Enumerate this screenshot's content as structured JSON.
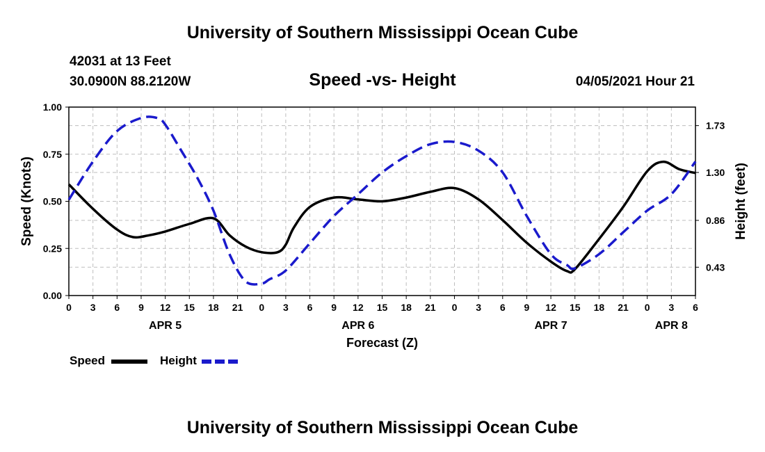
{
  "header": {
    "title_top": "University of Southern Mississippi Ocean Cube",
    "station_line": "42031 at 13 Feet",
    "coords_line": "30.0900N  88.2120W",
    "chart_subtitle": "Speed -vs- Height",
    "timestamp": "04/05/2021 Hour 21"
  },
  "footer": {
    "title_bottom": "University of Southern Mississippi Ocean Cube"
  },
  "legend": {
    "speed_label": "Speed",
    "height_label": "Height"
  },
  "colors": {
    "speed": "#000000",
    "height": "#1a1acc",
    "grid": "#bdbdbd"
  },
  "chart_data": {
    "type": "line",
    "title": "Speed -vs- Height",
    "xlabel": "Forecast (Z)",
    "ylabel": "Speed (Knots)",
    "y2label": "Height (feet)",
    "xlim": [
      0,
      78
    ],
    "ylim": [
      0,
      1.0
    ],
    "y2lim": [
      0.17,
      1.9
    ],
    "x_ticks": [
      0,
      3,
      6,
      9,
      12,
      15,
      18,
      21,
      24,
      27,
      30,
      33,
      36,
      39,
      42,
      45,
      48,
      51,
      54,
      57,
      60,
      63,
      66,
      69,
      72,
      75,
      78
    ],
    "x_tick_labels": [
      "0",
      "3",
      "6",
      "9",
      "12",
      "15",
      "18",
      "21",
      "0",
      "3",
      "6",
      "9",
      "12",
      "15",
      "18",
      "21",
      "0",
      "3",
      "6",
      "9",
      "12",
      "15",
      "18",
      "21",
      "0",
      "3",
      "6"
    ],
    "day_labels": [
      {
        "x": 12,
        "label": "APR 5"
      },
      {
        "x": 36,
        "label": "APR 6"
      },
      {
        "x": 60,
        "label": "APR 7"
      },
      {
        "x": 75,
        "label": "APR 8"
      }
    ],
    "y_ticks": [
      0,
      0.25,
      0.5,
      0.75,
      1.0
    ],
    "y_tick_labels": [
      "0.00",
      "0.25",
      "0.50",
      "0.75",
      "1.00"
    ],
    "y2_ticks": [
      0.43,
      0.86,
      1.3,
      1.73
    ],
    "y2_tick_labels": [
      "0.43",
      "0.86",
      "1.30",
      "1.73"
    ],
    "grid": true,
    "series": [
      {
        "name": "Speed",
        "axis": "left",
        "style": "solid",
        "x": [
          0,
          3,
          6,
          8,
          10,
          12,
          15,
          18,
          20,
          22,
          24,
          26,
          27,
          28,
          30,
          33,
          36,
          39,
          42,
          45,
          48,
          51,
          54,
          57,
          60,
          62,
          63,
          66,
          69,
          72,
          74,
          76,
          78
        ],
        "values": [
          0.59,
          0.46,
          0.35,
          0.31,
          0.32,
          0.34,
          0.38,
          0.41,
          0.32,
          0.26,
          0.23,
          0.23,
          0.27,
          0.36,
          0.47,
          0.52,
          0.51,
          0.5,
          0.52,
          0.55,
          0.57,
          0.51,
          0.4,
          0.28,
          0.18,
          0.13,
          0.14,
          0.3,
          0.47,
          0.66,
          0.71,
          0.67,
          0.65
        ]
      },
      {
        "name": "Height",
        "axis": "right",
        "style": "dashed",
        "x": [
          0,
          3,
          6,
          9,
          11,
          12,
          14,
          16,
          18,
          20,
          22,
          24,
          25,
          27,
          30,
          33,
          36,
          39,
          42,
          45,
          48,
          51,
          54,
          57,
          60,
          62,
          63,
          66,
          69,
          72,
          75,
          78
        ],
        "values": [
          1.05,
          1.4,
          1.68,
          1.8,
          1.8,
          1.74,
          1.5,
          1.25,
          0.95,
          0.55,
          0.3,
          0.28,
          0.32,
          0.4,
          0.65,
          0.9,
          1.1,
          1.3,
          1.45,
          1.56,
          1.58,
          1.5,
          1.3,
          0.9,
          0.55,
          0.45,
          0.42,
          0.55,
          0.75,
          0.95,
          1.1,
          1.4
        ]
      }
    ]
  }
}
